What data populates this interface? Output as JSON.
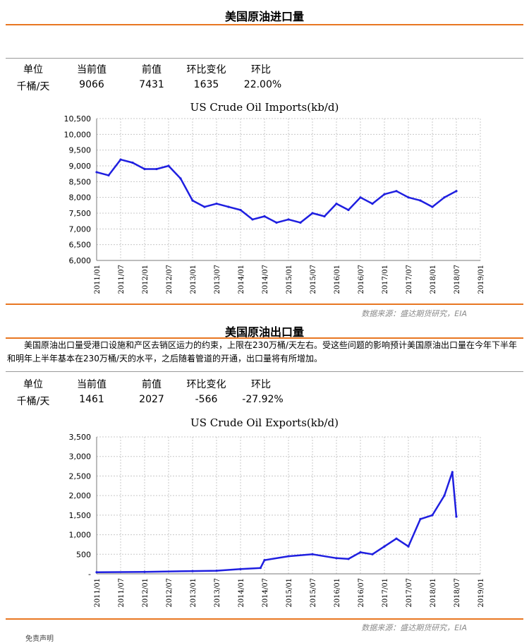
{
  "imports": {
    "section_title": "美国原油进口量",
    "headers": [
      "单位",
      "当前值",
      "前值",
      "环比变化",
      "环比"
    ],
    "values": [
      "千桶/天",
      "9066",
      "7431",
      "1635",
      "22.00%"
    ],
    "chart_data": {
      "type": "line",
      "title": "US Crude Oil Imports(kb/d)",
      "xlabel": "",
      "ylabel": "",
      "x_range": [
        "2011/01",
        "2019/01"
      ],
      "x_ticks": [
        "2011/01",
        "2011/07",
        "2012/01",
        "2012/07",
        "2013/01",
        "2013/07",
        "2014/01",
        "2014/07",
        "2015/01",
        "2015/07",
        "2016/01",
        "2016/07",
        "2017/01",
        "2017/07",
        "2018/01",
        "2018/07",
        "2019/01"
      ],
      "ylim": [
        6000,
        10500
      ],
      "y_ticks": [
        "6,000",
        "6,500",
        "7,000",
        "7,500",
        "8,000",
        "8,500",
        "9,000",
        "9,500",
        "10,000",
        "10,500"
      ],
      "grid": true,
      "color": "#1f1fe0",
      "series": [
        {
          "x": [
            "2011/01",
            "2011/04",
            "2011/07",
            "2011/10",
            "2012/01",
            "2012/04",
            "2012/07",
            "2012/10",
            "2013/01",
            "2013/04",
            "2013/07",
            "2013/10",
            "2014/01",
            "2014/04",
            "2014/07",
            "2014/10",
            "2015/01",
            "2015/04",
            "2015/07",
            "2015/10",
            "2016/01",
            "2016/04",
            "2016/07",
            "2016/10",
            "2017/01",
            "2017/04",
            "2017/07",
            "2017/10",
            "2018/01",
            "2018/04",
            "2018/07"
          ],
          "values": [
            8800,
            8700,
            9200,
            9100,
            8900,
            8900,
            9000,
            8600,
            7900,
            7700,
            7800,
            7700,
            7600,
            7300,
            7400,
            7200,
            7300,
            7200,
            7500,
            7400,
            7800,
            7600,
            8000,
            7800,
            8100,
            8200,
            8000,
            7900,
            7700,
            8000,
            8200
          ]
        }
      ]
    },
    "source": "数据来源：盛达期货研究，EIA"
  },
  "exports": {
    "section_title": "美国原油出口量",
    "description": "美国原油出口量受港口设施和产区去销区运力的约束，上限在230万桶/天左右。受这些问题的影响预计美国原油出口量在今年下半年和明年上半年基本在230万桶/天的水平，之后随着管道的开通，出口量将有所增加。",
    "headers": [
      "单位",
      "当前值",
      "前值",
      "环比变化",
      "环比"
    ],
    "values": [
      "千桶/天",
      "1461",
      "2027",
      "-566",
      "-27.92%"
    ],
    "chart_data": {
      "type": "line",
      "title": "US Crude Oil Exports(kb/d)",
      "xlabel": "",
      "ylabel": "",
      "x_range": [
        "2011/01",
        "2019/01"
      ],
      "x_ticks": [
        "2011/01",
        "2011/07",
        "2012/01",
        "2012/07",
        "2013/01",
        "2013/07",
        "2014/01",
        "2014/07",
        "2015/01",
        "2015/07",
        "2016/01",
        "2016/07",
        "2017/01",
        "2017/07",
        "2018/01",
        "2018/07",
        "2019/01"
      ],
      "ylim": [
        0,
        3500
      ],
      "y_ticks": [
        "-",
        "500",
        "1,000",
        "1,500",
        "2,000",
        "2,500",
        "3,000",
        "3,500"
      ],
      "grid": true,
      "color": "#1f1fe0",
      "series": [
        {
          "x": [
            "2011/01",
            "2012/01",
            "2013/01",
            "2013/07",
            "2014/01",
            "2014/06",
            "2014/07",
            "2015/01",
            "2015/07",
            "2016/01",
            "2016/04",
            "2016/07",
            "2016/10",
            "2017/01",
            "2017/04",
            "2017/07",
            "2017/10",
            "2018/01",
            "2018/04",
            "2018/06",
            "2018/07"
          ],
          "values": [
            40,
            50,
            70,
            80,
            120,
            150,
            350,
            450,
            500,
            400,
            380,
            550,
            500,
            700,
            900,
            700,
            1400,
            1500,
            2000,
            2600,
            1461
          ]
        }
      ]
    },
    "source": "数据来源：盛达期货研究，EIA",
    "footer_label": "免责声明"
  }
}
